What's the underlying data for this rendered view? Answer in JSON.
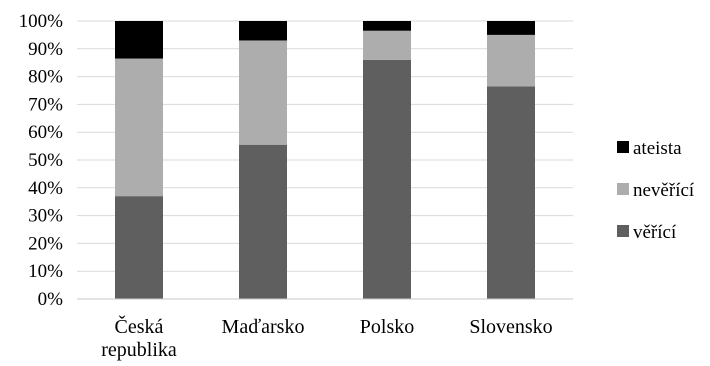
{
  "chart_data": {
    "type": "bar",
    "stacked": true,
    "percent": true,
    "categories": [
      [
        "Česká",
        "republika"
      ],
      [
        "Maďarsko"
      ],
      [
        "Polsko"
      ],
      [
        "Slovensko"
      ]
    ],
    "series": [
      {
        "name": "věřící",
        "color": "#5f5f5f",
        "values": [
          37,
          55.5,
          86,
          76.5
        ]
      },
      {
        "name": "nevěřící",
        "color": "#adadad",
        "values": [
          49.5,
          37.5,
          10.5,
          18.5
        ]
      },
      {
        "name": "ateista",
        "color": "#000000",
        "values": [
          13.5,
          7,
          3.5,
          5
        ]
      }
    ],
    "legend_order": [
      2,
      1,
      0
    ],
    "ylim": [
      0,
      100
    ],
    "yticks": [
      "0%",
      "10%",
      "20%",
      "30%",
      "40%",
      "50%",
      "60%",
      "70%",
      "80%",
      "90%",
      "100%"
    ],
    "grid": true,
    "legend": "right"
  }
}
